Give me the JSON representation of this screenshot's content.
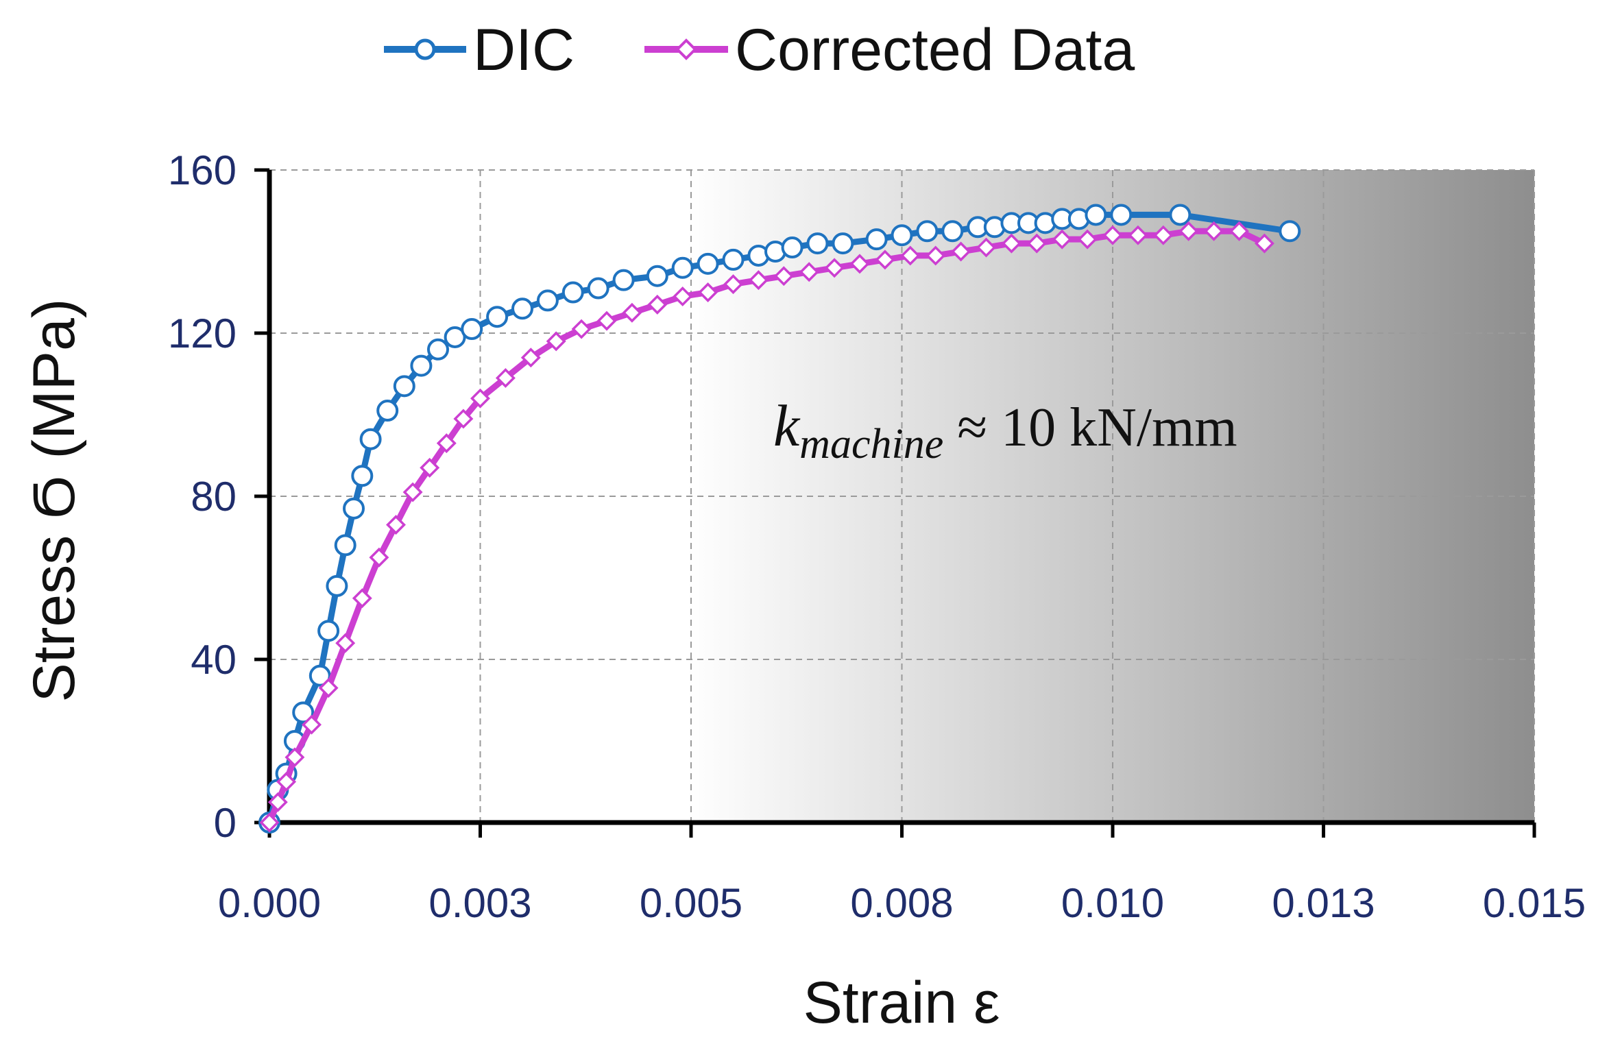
{
  "chart_data": {
    "type": "line",
    "title": "",
    "xlabel": "Strain ε",
    "ylabel": "Stress Ϭ (MPa)",
    "xlim": [
      0,
      0.015
    ],
    "ylim": [
      0,
      160
    ],
    "x_ticks": [
      0,
      0.0025,
      0.005,
      0.0075,
      0.01,
      0.0125,
      0.015
    ],
    "x_tick_labels": [
      "0.000",
      "0.003",
      "0.005",
      "0.008",
      "0.010",
      "0.013",
      "0.015"
    ],
    "y_ticks": [
      0,
      40,
      80,
      120,
      160
    ],
    "y_tick_labels": [
      "0",
      "40",
      "80",
      "120",
      "160"
    ],
    "grid": true,
    "legend_position": "top",
    "annotation": {
      "k": "k",
      "subscript": "machine",
      "rest": " ≈ 10 kN/mm"
    },
    "series": [
      {
        "name": "DIC",
        "color": "#1f73c0",
        "marker": "circle",
        "x": [
          0,
          0.0001,
          0.0002,
          0.0003,
          0.0004,
          0.0006,
          0.0007,
          0.0008,
          0.0009,
          0.001,
          0.0011,
          0.0012,
          0.0014,
          0.0016,
          0.0018,
          0.002,
          0.0022,
          0.0024,
          0.0027,
          0.003,
          0.0033,
          0.0036,
          0.0039,
          0.0042,
          0.0046,
          0.0049,
          0.0052,
          0.0055,
          0.0058,
          0.006,
          0.0062,
          0.0065,
          0.0068,
          0.0072,
          0.0075,
          0.0078,
          0.0081,
          0.0084,
          0.0086,
          0.0088,
          0.009,
          0.0092,
          0.0094,
          0.0096,
          0.0098,
          0.0101,
          0.0108,
          0.0121
        ],
        "values": [
          0,
          8,
          12,
          20,
          27,
          36,
          47,
          58,
          68,
          77,
          85,
          94,
          101,
          107,
          112,
          116,
          119,
          121,
          124,
          126,
          128,
          130,
          131,
          133,
          134,
          136,
          137,
          138,
          139,
          140,
          141,
          142,
          142,
          143,
          144,
          145,
          145,
          146,
          146,
          147,
          147,
          147,
          148,
          148,
          149,
          149,
          149,
          145
        ]
      },
      {
        "name": "Corrected Data",
        "color": "#cc3fd1",
        "marker": "diamond",
        "x": [
          0,
          0.0001,
          0.0002,
          0.0003,
          0.0005,
          0.0007,
          0.0009,
          0.0011,
          0.0013,
          0.0015,
          0.0017,
          0.0019,
          0.0021,
          0.0023,
          0.0025,
          0.0028,
          0.0031,
          0.0034,
          0.0037,
          0.004,
          0.0043,
          0.0046,
          0.0049,
          0.0052,
          0.0055,
          0.0058,
          0.0061,
          0.0064,
          0.0067,
          0.007,
          0.0073,
          0.0076,
          0.0079,
          0.0082,
          0.0085,
          0.0088,
          0.0091,
          0.0094,
          0.0097,
          0.01,
          0.0103,
          0.0106,
          0.0109,
          0.0112,
          0.0115,
          0.0118
        ],
        "values": [
          0,
          5,
          10,
          16,
          24,
          33,
          44,
          55,
          65,
          73,
          81,
          87,
          93,
          99,
          104,
          109,
          114,
          118,
          121,
          123,
          125,
          127,
          129,
          130,
          132,
          133,
          134,
          135,
          136,
          137,
          138,
          139,
          139,
          140,
          141,
          142,
          142,
          143,
          143,
          144,
          144,
          144,
          145,
          145,
          145,
          142
        ]
      }
    ]
  }
}
